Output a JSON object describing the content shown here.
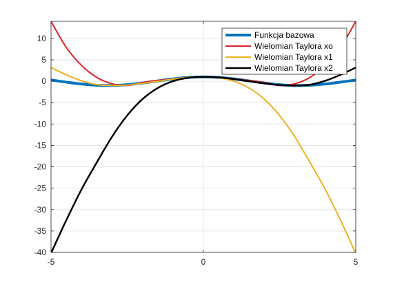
{
  "chart_data": {
    "type": "line",
    "xlim": [
      -5,
      5
    ],
    "ylim": [
      -40,
      14
    ],
    "grid": true,
    "legend_placement": "top-right",
    "x_ticks": [
      {
        "value": -5,
        "label": "-5"
      },
      {
        "value": 0,
        "label": "0"
      },
      {
        "value": 5,
        "label": "5"
      }
    ],
    "y_ticks": [
      {
        "value": 10,
        "label": "10"
      },
      {
        "value": 5,
        "label": "5"
      },
      {
        "value": 0,
        "label": "0"
      },
      {
        "value": -5,
        "label": "-5"
      },
      {
        "value": -10,
        "label": "-10"
      },
      {
        "value": -15,
        "label": "-15"
      },
      {
        "value": -20,
        "label": "-20"
      },
      {
        "value": -25,
        "label": "-25"
      },
      {
        "value": -30,
        "label": "-30"
      },
      {
        "value": -35,
        "label": "-35"
      },
      {
        "value": -40,
        "label": "-40"
      }
    ],
    "series": [
      {
        "name": "Funkcja bazowa",
        "color": "#0072bd",
        "x": [
          -5,
          -4.5,
          -4,
          -3.5,
          -3,
          -2.5,
          -2,
          -1.5,
          -1,
          -0.5,
          0,
          0.5,
          1,
          1.5,
          2,
          2.5,
          3,
          3.5,
          4,
          4.5,
          5
        ],
        "y": [
          0.28,
          -0.21,
          -0.65,
          -0.94,
          -0.99,
          -0.8,
          -0.42,
          0.07,
          0.54,
          0.88,
          1.0,
          0.88,
          0.54,
          0.07,
          -0.42,
          -0.8,
          -0.99,
          -0.94,
          -0.65,
          -0.21,
          0.28
        ]
      },
      {
        "name": "Wielomian Taylora xo",
        "color": "#d9232a",
        "x": [
          -5,
          -4.5,
          -4,
          -3.5,
          -3,
          -2.5,
          -2,
          -1.5,
          -1,
          -0.5,
          0,
          0.5,
          1,
          1.5,
          2,
          2.5,
          3,
          3.5,
          4,
          4.5,
          5
        ],
        "y": [
          14.0,
          7.9,
          3.7,
          0.9,
          -0.6,
          -1.0,
          -0.3,
          0.2,
          0.5,
          0.9,
          1.0,
          0.9,
          0.5,
          0.2,
          -0.3,
          -1.0,
          -0.6,
          0.9,
          3.7,
          7.9,
          14.0
        ]
      },
      {
        "name": "Wielomian Taylora x1",
        "color": "#edb120",
        "x": [
          -5,
          -4.5,
          -4,
          -3.5,
          -3,
          -2.5,
          -2,
          -1.5,
          -1,
          -0.5,
          0,
          0.5,
          1,
          1.5,
          2,
          2.5,
          3,
          3.5,
          4,
          4.5,
          5
        ],
        "y": [
          3.2,
          1.5,
          0.1,
          -0.8,
          -1.0,
          -0.9,
          -0.5,
          0.0,
          0.5,
          0.9,
          1.0,
          0.8,
          0.0,
          -1.6,
          -4.2,
          -8.0,
          -13.0,
          -19.0,
          -25.3,
          -32.5,
          -40.2
        ]
      },
      {
        "name": "Wielomian Taylora x2",
        "color": "#000000",
        "x": [
          -5,
          -4.5,
          -4,
          -3.5,
          -3,
          -2.5,
          -2,
          -1.5,
          -1,
          -0.5,
          0,
          0.5,
          1,
          1.5,
          2,
          2.5,
          3,
          3.5,
          4,
          4.5,
          5
        ],
        "y": [
          -40.2,
          -32.5,
          -25.3,
          -19.0,
          -13.0,
          -8.0,
          -4.2,
          -1.6,
          0.0,
          0.8,
          1.0,
          0.9,
          0.5,
          0.0,
          -0.5,
          -0.9,
          -1.0,
          -0.8,
          0.1,
          1.5,
          3.2
        ]
      }
    ]
  }
}
